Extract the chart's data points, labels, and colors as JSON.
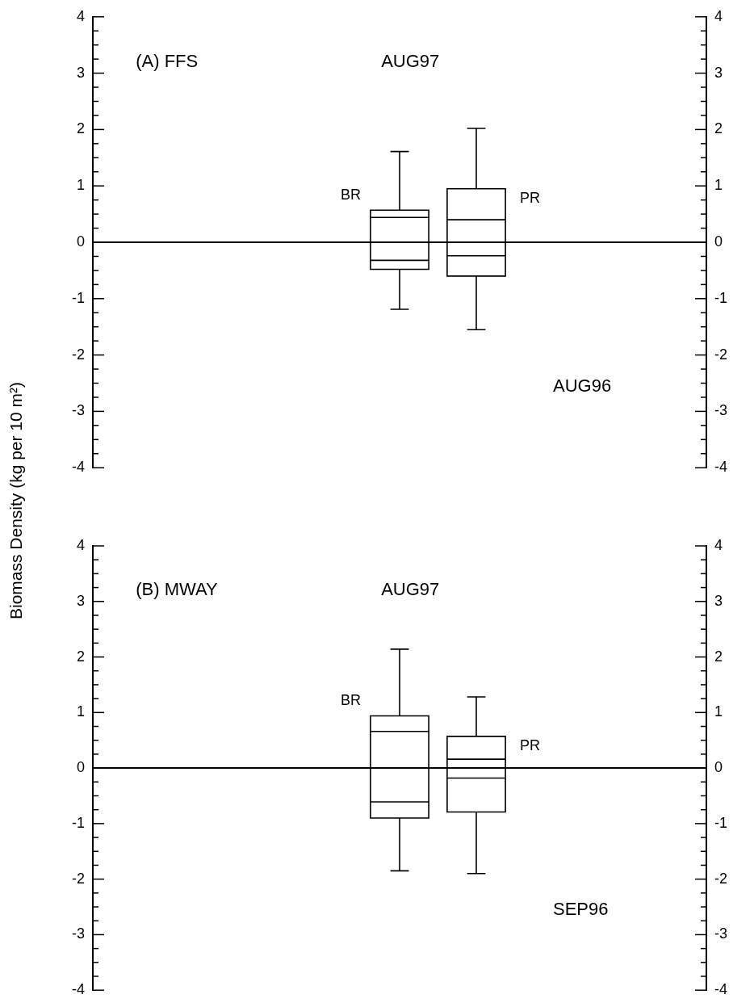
{
  "chart_data": [
    {
      "type": "box",
      "ylabel": "Biomass Density (kg per 10 m²)",
      "categories": [
        null,
        null,
        null,
        null,
        null,
        null,
        null
      ],
      "series": [
        {
          "name": "BR",
          "color": "#000000",
          "boxes": [
            null,
            null,
            null,
            {
              "low": -1.19,
              "q1": -0.48,
              "median": 0.44,
              "q3": 0.57,
              "high": 1.61,
              "mean": -0.32
            },
            null,
            null,
            null
          ]
        },
        {
          "name": "PR",
          "color": "#000000",
          "boxes": [
            null,
            null,
            null,
            null,
            {
              "low": -1.55,
              "q1": -0.6,
              "median": 0.4,
              "q3": 0.95,
              "high": 2.02,
              "mean": -0.24
            },
            null,
            null
          ]
        }
      ],
      "ylim": [
        -4,
        4
      ],
      "yticks": [
        -4,
        {
          "value": -3.75,
          "label": null
        },
        {
          "value": -3.5,
          "label": null
        },
        {
          "value": -3.25,
          "label": null
        },
        -3,
        {
          "value": -2.75,
          "label": null
        },
        {
          "value": -2.5,
          "label": null
        },
        {
          "value": -2.25,
          "label": null
        },
        -2,
        {
          "value": -1.75,
          "label": null
        },
        {
          "value": -1.5,
          "label": null
        },
        {
          "value": -1.25,
          "label": null
        },
        -1,
        {
          "value": -0.75,
          "label": null
        },
        {
          "value": -0.5,
          "label": null
        },
        {
          "value": -0.25,
          "label": null
        },
        0,
        {
          "value": 0.25,
          "label": null
        },
        {
          "value": 0.5,
          "label": null
        },
        {
          "value": 0.75,
          "label": null
        },
        1,
        {
          "value": 1.25,
          "label": null
        },
        {
          "value": 1.5,
          "label": null
        },
        {
          "value": 1.75,
          "label": null
        },
        2,
        {
          "value": 2.25,
          "label": null
        },
        {
          "value": 2.5,
          "label": null
        },
        {
          "value": 2.75,
          "label": null
        },
        3,
        {
          "value": 3.25,
          "label": null
        },
        {
          "value": 3.5,
          "label": null
        },
        {
          "value": 3.75,
          "label": null
        },
        4
      ],
      "y2lim": [
        -4,
        4
      ],
      "y2ticks": [
        -4,
        {
          "value": -3.75,
          "label": null
        },
        {
          "value": -3.5,
          "label": null
        },
        {
          "value": -3.25,
          "label": null
        },
        -3,
        {
          "value": -2.75,
          "label": null
        },
        {
          "value": -2.5,
          "label": null
        },
        {
          "value": -2.25,
          "label": null
        },
        -2,
        {
          "value": -1.75,
          "label": null
        },
        {
          "value": -1.5,
          "label": null
        },
        {
          "value": -1.25,
          "label": null
        },
        -1,
        {
          "value": -0.75,
          "label": null
        },
        {
          "value": -0.5,
          "label": null
        },
        {
          "value": -0.25,
          "label": null
        },
        0,
        {
          "value": 0.25,
          "label": null
        },
        {
          "value": 0.5,
          "label": null
        },
        {
          "value": 0.75,
          "label": null
        },
        1,
        {
          "value": 1.25,
          "label": null
        },
        {
          "value": 1.5,
          "label": null
        },
        {
          "value": 1.75,
          "label": null
        },
        2,
        {
          "value": 2.25,
          "label": null
        },
        {
          "value": 2.5,
          "label": null
        },
        {
          "value": 2.75,
          "label": null
        },
        3,
        {
          "value": 3.25,
          "label": null
        },
        {
          "value": 3.5,
          "label": null
        },
        {
          "value": 3.75,
          "label": null
        },
        4
      ],
      "ref_lines": [
        {
          "axis": "y",
          "value": 0,
          "color": "#000000"
        }
      ],
      "annotations": [
        "(A) FFS",
        "AUG97",
        "AUG96"
      ],
      "tick_labels": "y",
      "grid": false,
      "legend": false
    },
    {
      "type": "box",
      "categories": [
        null,
        null,
        null,
        null,
        null,
        null,
        null
      ],
      "series": [
        {
          "name": "BR",
          "color": "#000000",
          "boxes": [
            null,
            null,
            null,
            {
              "low": -1.85,
              "q1": -0.9,
              "median": 0.66,
              "q3": 0.94,
              "high": 2.14,
              "mean": -0.61
            },
            null,
            null,
            null
          ]
        },
        {
          "name": "PR",
          "color": "#000000",
          "boxes": [
            null,
            null,
            null,
            null,
            {
              "low": -1.9,
              "q1": -0.79,
              "median": 0.16,
              "q3": 0.57,
              "high": 1.28,
              "mean": -0.18
            },
            null,
            null
          ]
        }
      ],
      "ylim": [
        -4,
        4
      ],
      "yticks": [
        -4,
        {
          "value": -3.75,
          "label": null
        },
        {
          "value": -3.5,
          "label": null
        },
        {
          "value": -3.25,
          "label": null
        },
        -3,
        {
          "value": -2.75,
          "label": null
        },
        {
          "value": -2.5,
          "label": null
        },
        {
          "value": -2.25,
          "label": null
        },
        -2,
        {
          "value": -1.75,
          "label": null
        },
        {
          "value": -1.5,
          "label": null
        },
        {
          "value": -1.25,
          "label": null
        },
        -1,
        {
          "value": -0.75,
          "label": null
        },
        {
          "value": -0.5,
          "label": null
        },
        {
          "value": -0.25,
          "label": null
        },
        0,
        {
          "value": 0.25,
          "label": null
        },
        {
          "value": 0.5,
          "label": null
        },
        {
          "value": 0.75,
          "label": null
        },
        1,
        {
          "value": 1.25,
          "label": null
        },
        {
          "value": 1.5,
          "label": null
        },
        {
          "value": 1.75,
          "label": null
        },
        2,
        {
          "value": 2.25,
          "label": null
        },
        {
          "value": 2.5,
          "label": null
        },
        {
          "value": 2.75,
          "label": null
        },
        3,
        {
          "value": 3.25,
          "label": null
        },
        {
          "value": 3.5,
          "label": null
        },
        {
          "value": 3.75,
          "label": null
        },
        4
      ],
      "y2lim": [
        -4,
        4
      ],
      "y2ticks": [
        -4,
        {
          "value": -3.75,
          "label": null
        },
        {
          "value": -3.5,
          "label": null
        },
        {
          "value": -3.25,
          "label": null
        },
        -3,
        {
          "value": -2.75,
          "label": null
        },
        {
          "value": -2.5,
          "label": null
        },
        {
          "value": -2.25,
          "label": null
        },
        -2,
        {
          "value": -1.75,
          "label": null
        },
        {
          "value": -1.5,
          "label": null
        },
        {
          "value": -1.25,
          "label": null
        },
        -1,
        {
          "value": -0.75,
          "label": null
        },
        {
          "value": -0.5,
          "label": null
        },
        {
          "value": -0.25,
          "label": null
        },
        0,
        {
          "value": 0.25,
          "label": null
        },
        {
          "value": 0.5,
          "label": null
        },
        {
          "value": 0.75,
          "label": null
        },
        1,
        {
          "value": 1.25,
          "label": null
        },
        {
          "value": 1.5,
          "label": null
        },
        {
          "value": 1.75,
          "label": null
        },
        2,
        {
          "value": 2.25,
          "label": null
        },
        {
          "value": 2.5,
          "label": null
        },
        {
          "value": 2.75,
          "label": null
        },
        3,
        {
          "value": 3.25,
          "label": null
        },
        {
          "value": 3.5,
          "label": null
        },
        {
          "value": 3.75,
          "label": null
        },
        4
      ],
      "ref_lines": [
        {
          "axis": "y",
          "value": 0,
          "color": "#000000"
        }
      ],
      "annotations": [
        "(B) MWAY",
        "AUG97",
        "SEP96"
      ],
      "tick_labels": "y",
      "grid": false,
      "legend": false
    }
  ]
}
